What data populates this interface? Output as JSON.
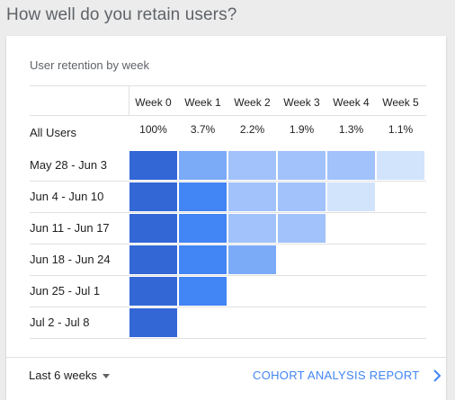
{
  "page": {
    "title": "How well do you retain users?"
  },
  "card": {
    "title": "User retention by week",
    "week_headers": [
      "Week 0",
      "Week 1",
      "Week 2",
      "Week 3",
      "Week 4",
      "Week 5"
    ],
    "all_users": {
      "label": "All Users",
      "values": [
        "100%",
        "3.7%",
        "2.2%",
        "1.9%",
        "1.3%",
        "1.1%"
      ]
    },
    "cohorts": [
      {
        "label": "May 28 - Jun 3",
        "cells": [
          "#3367d6",
          "#7baaf7",
          "#a1c2fa",
          "#a1c2fa",
          "#a1c2fa",
          "#d2e3fc"
        ]
      },
      {
        "label": "Jun 4 - Jun 10",
        "cells": [
          "#3367d6",
          "#4285f4",
          "#a1c2fa",
          "#a1c2fa",
          "#d2e3fc"
        ]
      },
      {
        "label": "Jun 11 - Jun 17",
        "cells": [
          "#3367d6",
          "#4285f4",
          "#a1c2fa",
          "#a1c2fa"
        ]
      },
      {
        "label": "Jun 18 - Jun 24",
        "cells": [
          "#3367d6",
          "#4285f4",
          "#7baaf7"
        ]
      },
      {
        "label": "Jun 25 - Jul 1",
        "cells": [
          "#3367d6",
          "#4285f4"
        ]
      },
      {
        "label": "Jul 2 - Jul 8",
        "cells": [
          "#3367d6"
        ]
      }
    ],
    "footer": {
      "range_label": "Last 6 weeks",
      "report_label": "COHORT ANALYSIS REPORT"
    }
  },
  "colors": {
    "accent": "#4285f4"
  },
  "icons": {
    "range": "caret-down-icon",
    "report": "chevron-right-icon"
  }
}
